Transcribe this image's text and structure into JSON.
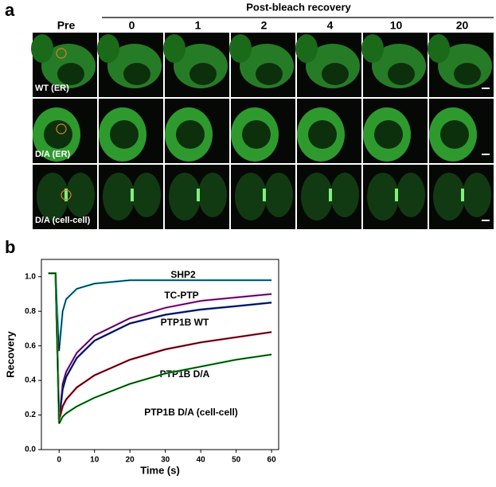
{
  "panel_a": {
    "label": "a",
    "pre": "Pre",
    "group": "Post-bleach recovery",
    "times": [
      "0",
      "1",
      "2",
      "4",
      "10",
      "20"
    ],
    "rows": [
      "WT (ER)",
      "D/A (ER)",
      "D/A (cell-cell)"
    ]
  },
  "chart_data": {
    "type": "line",
    "panel": "b",
    "x_label": "Time (s)",
    "y_label": "Recovery",
    "x": [
      -3,
      -1,
      0,
      1,
      2,
      5,
      10,
      20,
      30,
      40,
      50,
      60
    ],
    "series": [
      {
        "name": "SHP2",
        "color": "#2ec4e8",
        "values": [
          1.02,
          1.02,
          0.57,
          0.8,
          0.87,
          0.93,
          0.96,
          0.98,
          0.98,
          0.98,
          0.98,
          0.98
        ]
      },
      {
        "name": "TC-PTP",
        "color": "#e040e0",
        "values": [
          1.02,
          1.02,
          0.17,
          0.38,
          0.45,
          0.56,
          0.66,
          0.76,
          0.82,
          0.86,
          0.88,
          0.9
        ]
      },
      {
        "name": "PTP1B WT",
        "color": "#2040c0",
        "values": [
          1.02,
          1.02,
          0.17,
          0.35,
          0.42,
          0.53,
          0.63,
          0.73,
          0.78,
          0.81,
          0.83,
          0.85
        ]
      },
      {
        "name": "PTP1B D/A",
        "color": "#e0203a",
        "values": [
          1.02,
          1.02,
          0.17,
          0.25,
          0.29,
          0.36,
          0.43,
          0.52,
          0.58,
          0.62,
          0.65,
          0.68
        ]
      },
      {
        "name": "PTP1B D/A (cell-cell)",
        "color": "#30d040",
        "values": [
          1.02,
          1.02,
          0.15,
          0.19,
          0.21,
          0.25,
          0.3,
          0.38,
          0.44,
          0.48,
          0.52,
          0.55
        ]
      }
    ],
    "xlim": [
      -5,
      62
    ],
    "xticks": [
      0,
      10,
      20,
      30,
      40,
      50,
      60
    ],
    "ylim": [
      0,
      1.1
    ],
    "yticks": [
      {
        "value": 0,
        "label": "0.0"
      },
      0.2,
      0.4,
      0.6,
      0.8,
      {
        "value": 1,
        "label": "1.0"
      }
    ]
  }
}
